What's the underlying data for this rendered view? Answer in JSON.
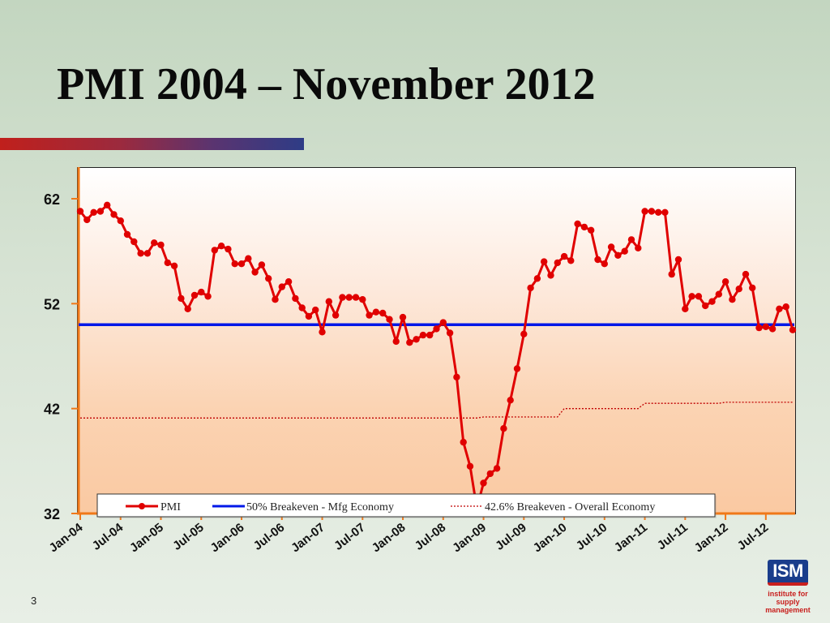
{
  "slide": {
    "title": "PMI 2004 – November 2012",
    "page_number": "3"
  },
  "logo": {
    "mark": "ISM",
    "line1": "institute for",
    "line2": "supply management"
  },
  "colors": {
    "pmi": "#e00000",
    "mfg_breakeven": "#0018e8",
    "overall_breakeven": "#c00000",
    "axis": "#f07818",
    "accent_bar_start": "#c0201c",
    "accent_bar_end": "#2e3c86"
  },
  "chart_data": {
    "type": "line",
    "title": "",
    "xlabel": "",
    "ylabel": "",
    "ylim": [
      32,
      62
    ],
    "y_ticks": [
      32,
      42,
      52,
      62
    ],
    "x_tick_labels": [
      "Jan-04",
      "Jul-04",
      "Jan-05",
      "Jul-05",
      "Jan-06",
      "Jul-06",
      "Jan-07",
      "Jul-07",
      "Jan-08",
      "Jul-08",
      "Jan-09",
      "Jul-09",
      "Jan-10",
      "Jul-10",
      "Jan-11",
      "Jul-11",
      "Jan-12",
      "Jul-12"
    ],
    "x_start": "Jan-04",
    "x_end": "Nov-12",
    "legend_position": "bottom",
    "grid": false,
    "series": [
      {
        "name": "PMI",
        "style": "line-with-markers",
        "values": [
          60.8,
          60.0,
          60.7,
          60.8,
          61.4,
          60.5,
          59.9,
          58.6,
          57.9,
          56.8,
          56.8,
          57.8,
          57.6,
          55.9,
          55.6,
          52.5,
          51.5,
          52.8,
          53.1,
          52.7,
          57.1,
          57.5,
          57.2,
          55.8,
          55.8,
          56.3,
          55.0,
          55.7,
          54.4,
          52.4,
          53.6,
          54.1,
          52.5,
          51.6,
          50.8,
          51.4,
          49.3,
          52.2,
          50.9,
          52.6,
          52.6,
          52.6,
          52.4,
          50.9,
          51.2,
          51.1,
          50.5,
          48.4,
          50.7,
          48.3,
          48.6,
          49.0,
          49.0,
          49.6,
          50.2,
          49.2,
          45.0,
          38.8,
          36.5,
          32.5,
          34.9,
          35.8,
          36.3,
          40.1,
          42.8,
          45.8,
          49.1,
          53.5,
          54.4,
          56.0,
          54.7,
          55.9,
          56.5,
          56.1,
          59.6,
          59.3,
          59.0,
          56.2,
          55.8,
          57.4,
          56.6,
          57.0,
          58.1,
          57.3,
          60.8,
          60.8,
          60.7,
          60.7,
          54.8,
          56.2,
          51.5,
          52.7,
          52.7,
          51.8,
          52.2,
          52.9,
          54.1,
          52.4,
          53.4,
          54.8,
          53.5,
          49.7,
          49.8,
          49.6,
          51.5,
          51.7,
          49.5
        ]
      },
      {
        "name": "50% Breakeven - Mfg Economy",
        "style": "solid",
        "values": [
          50
        ]
      },
      {
        "name": "42.6% Breakeven - Overall Economy",
        "style": "dotted",
        "segments": [
          {
            "from": "Jan-04",
            "to": "Dec-08",
            "value": 41.1
          },
          {
            "from": "Jan-09",
            "to": "Dec-09",
            "value": 41.2
          },
          {
            "from": "Jan-10",
            "to": "Dec-10",
            "value": 42.0
          },
          {
            "from": "Jan-11",
            "to": "Dec-11",
            "value": 42.5
          },
          {
            "from": "Jan-12",
            "to": "Nov-12",
            "value": 42.6
          }
        ]
      }
    ]
  }
}
